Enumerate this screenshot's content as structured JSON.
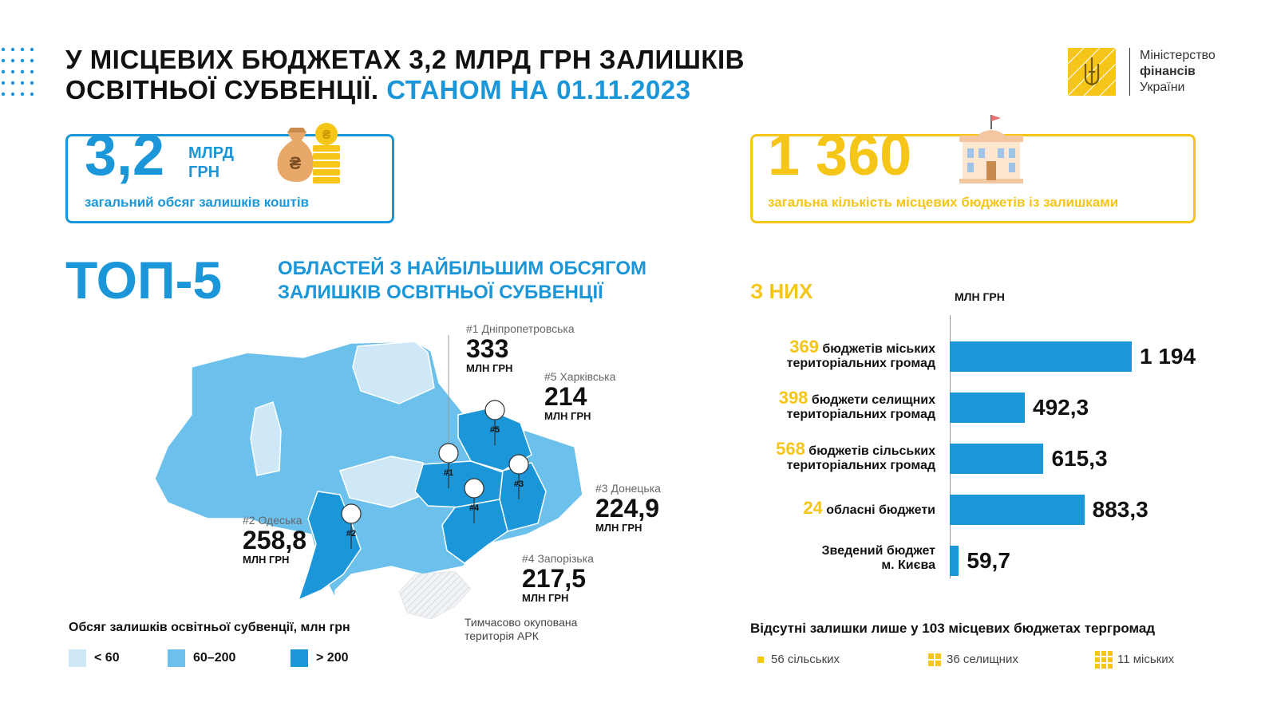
{
  "header": {
    "title_line1": "У МІСЦЕВИХ БЮДЖЕТАХ 3,2 МЛРД ГРН ЗАЛИШКІВ",
    "title_line2_dark": "ОСВІТНЬОЇ СУБВЕНЦІЇ.",
    "title_line2_accent": "СТАНОМ НА 01.11.2023"
  },
  "ministry": {
    "line1": "Міністерство",
    "line2": "фінансів",
    "line3": "України"
  },
  "total_card": {
    "value": "3,2",
    "unit_line1": "МЛРД",
    "unit_line2": "ГРН",
    "caption": "загальний обсяг залишків коштів"
  },
  "count_card": {
    "value": "1 360",
    "caption": "загальна кількість місцевих бюджетів із залишками"
  },
  "top5": {
    "heading": "ТОП-5",
    "sub_line1": "ОБЛАСТЕЙ З НАЙБІЛЬШИМ ОБСЯГОМ",
    "sub_line2": "ЗАЛИШКІВ ОСВІТНЬОЇ СУБВЕНЦІЇ"
  },
  "regions": [
    {
      "rank": "#1",
      "label": "#1 Дніпропетровська",
      "value": "333",
      "unit": "МЛН ГРН"
    },
    {
      "rank": "#2",
      "label": "#2 Одеська",
      "value": "258,8",
      "unit": "МЛН ГРН"
    },
    {
      "rank": "#3",
      "label": "#3 Донецька",
      "value": "224,9",
      "unit": "МЛН ГРН"
    },
    {
      "rank": "#4",
      "label": "#4 Запорізька",
      "value": "217,5",
      "unit": "МЛН ГРН"
    },
    {
      "rank": "#5",
      "label": "#5 Харківська",
      "value": "214",
      "unit": "МЛН ГРН"
    }
  ],
  "map_legend": {
    "title": "Обсяг залишків освітньої субвенції, млн грн",
    "items": [
      {
        "label": "< 60",
        "color": "#cfe8f7"
      },
      {
        "label": "60–200",
        "color": "#6cc0ec"
      },
      {
        "label": "> 200",
        "color": "#1a96d9"
      }
    ]
  },
  "crimea_note": {
    "line1": "Тимчасово окупована",
    "line2": "територія АРК"
  },
  "colors": {
    "accent_blue": "#1a96d9",
    "accent_yellow": "#f5c518"
  },
  "chart_data": {
    "type": "bar",
    "title": "З НИХ",
    "ylabel": "МЛН ГРН",
    "orientation": "horizontal",
    "categories": [
      "бюджетів міських територіальних громад",
      "бюджети селищних територіальних громад",
      "бюджетів сільських територіальних громад",
      "обласні бюджети",
      "Зведений бюджет м. Києва"
    ],
    "counts": [
      "369",
      "398",
      "568",
      "24",
      ""
    ],
    "values": [
      1194,
      492.3,
      615.3,
      883.3,
      59.7
    ],
    "value_labels": [
      "1 194",
      "492,3",
      "615,3",
      "883,3",
      "59,7"
    ]
  },
  "bar_rows": [
    {
      "num": "369",
      "text1": " бюджетів міських",
      "text2": "територіальних громад"
    },
    {
      "num": "398",
      "text1": " бюджети селищних",
      "text2": "територіальних громад"
    },
    {
      "num": "568",
      "text1": " бюджетів сільських",
      "text2": "територіальних громад"
    },
    {
      "num": "24",
      "text1": " обласні бюджети",
      "text2": ""
    },
    {
      "num": "",
      "text1": "Зведений бюджет",
      "text2": "м. Києва"
    }
  ],
  "absent": {
    "title": "Відсутні залишки лише у 103 місцевих бюджетах тергромад",
    "items": [
      "56 сільських",
      "36 селищних",
      "11 міських"
    ]
  }
}
